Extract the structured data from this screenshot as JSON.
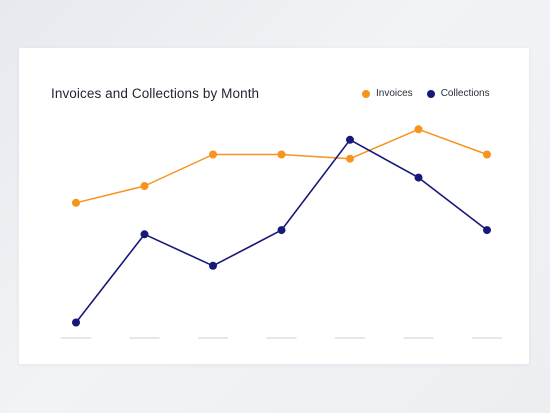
{
  "chart_data": {
    "type": "line",
    "title": "Invoices and Collections by Month",
    "categories": [
      "",
      "",
      "",
      "",
      "",
      "",
      ""
    ],
    "series": [
      {
        "name": "Invoices",
        "color": "#f7931e",
        "values": [
          62,
          70,
          85,
          85,
          83,
          97,
          85
        ]
      },
      {
        "name": "Collections",
        "color": "#16197a",
        "values": [
          5,
          47,
          32,
          49,
          92,
          74,
          49
        ]
      }
    ],
    "xlabel": "",
    "ylabel": "",
    "ylim": [
      0,
      100
    ],
    "grid": false,
    "legend": "top-right"
  }
}
